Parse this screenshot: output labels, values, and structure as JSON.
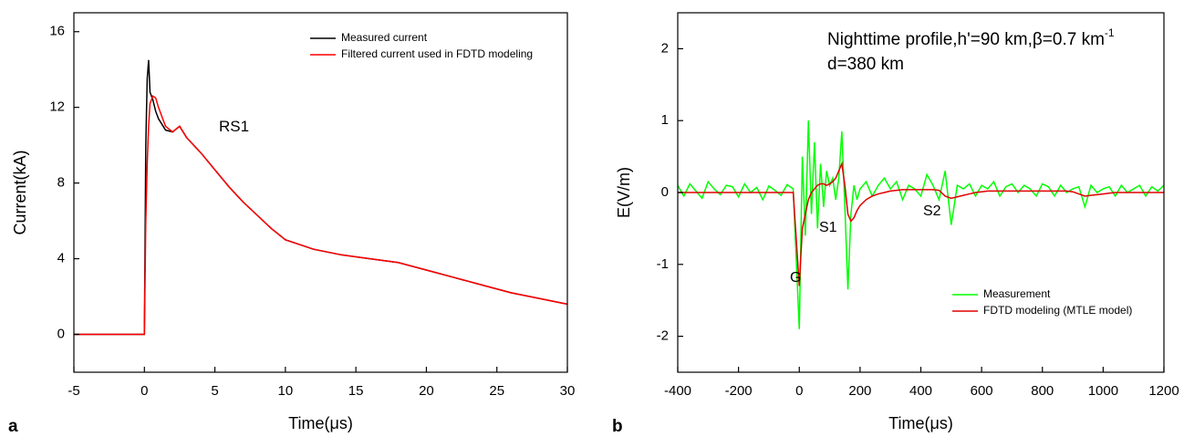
{
  "chart_data": [
    {
      "type": "line",
      "panel_label": "a",
      "xlabel": "Time(μs)",
      "ylabel": "Current(kA)",
      "xlim": [
        -5,
        30
      ],
      "ylim": [
        -2,
        17
      ],
      "xticks": [
        -5,
        0,
        5,
        10,
        15,
        20,
        25,
        30
      ],
      "yticks": [
        0,
        4,
        8,
        12,
        16
      ],
      "legend": "upper right",
      "x": [
        -5,
        0,
        0.05,
        0.1,
        0.2,
        0.3,
        0.4,
        0.6,
        0.8,
        1,
        1.5,
        2,
        2.5,
        3,
        4,
        5,
        6,
        7,
        8,
        9,
        10,
        12,
        14,
        16,
        18,
        20,
        22,
        24,
        26,
        28,
        30
      ],
      "series": [
        {
          "name": "Measured current",
          "color": "#000000",
          "values": [
            0,
            0,
            5,
            10,
            13.5,
            14.5,
            12.8,
            12.4,
            11.8,
            11.4,
            10.8,
            10.7,
            11,
            10.4,
            9.6,
            8.7,
            7.8,
            7,
            6.3,
            5.6,
            5,
            4.5,
            4.2,
            4,
            3.8,
            3.4,
            3,
            2.6,
            2.2,
            1.9,
            1.6
          ]
        },
        {
          "name": "Filtered current used in FDTD modeling",
          "color": "#ff0000",
          "values": [
            0,
            0,
            3,
            6,
            9,
            11,
            12.2,
            12.6,
            12.5,
            12,
            11,
            10.7,
            11,
            10.4,
            9.6,
            8.7,
            7.8,
            7,
            6.3,
            5.6,
            5,
            4.5,
            4.2,
            4,
            3.8,
            3.4,
            3,
            2.6,
            2.2,
            1.9,
            1.6
          ]
        }
      ],
      "annotations": [
        {
          "text": "RS1"
        }
      ]
    },
    {
      "type": "line",
      "panel_label": "b",
      "xlabel": "Time(μs)",
      "ylabel": "E(V/m)",
      "xlim": [
        -400,
        1200
      ],
      "ylim": [
        -2.5,
        2.5
      ],
      "xticks": [
        -400,
        -200,
        0,
        200,
        400,
        600,
        800,
        1000,
        1200
      ],
      "yticks": [
        -2,
        -1,
        0,
        1,
        2
      ],
      "legend": "lower right",
      "x": [
        -400,
        -380,
        -360,
        -340,
        -320,
        -300,
        -280,
        -260,
        -240,
        -220,
        -200,
        -180,
        -160,
        -140,
        -120,
        -100,
        -80,
        -60,
        -40,
        -20,
        0,
        10,
        20,
        30,
        40,
        50,
        60,
        70,
        80,
        90,
        100,
        110,
        120,
        130,
        140,
        150,
        160,
        170,
        180,
        190,
        200,
        220,
        240,
        260,
        280,
        300,
        320,
        340,
        360,
        380,
        400,
        420,
        440,
        460,
        480,
        500,
        520,
        540,
        560,
        580,
        600,
        620,
        640,
        660,
        680,
        700,
        720,
        740,
        760,
        780,
        800,
        820,
        840,
        860,
        880,
        900,
        920,
        940,
        960,
        980,
        1000,
        1020,
        1040,
        1060,
        1080,
        1100,
        1120,
        1140,
        1160,
        1180,
        1200
      ],
      "series": [
        {
          "name": "Measurement",
          "color": "#00ff00",
          "values": [
            0.1,
            -0.05,
            0.12,
            0.02,
            -0.08,
            0.15,
            0.05,
            -0.03,
            0.1,
            0.08,
            -0.06,
            0.12,
            0,
            0.07,
            -0.1,
            0.09,
            0.03,
            -0.04,
            0.11,
            0.05,
            -1.9,
            0.5,
            -0.6,
            1.0,
            -0.3,
            0.7,
            -0.5,
            0.4,
            -0.2,
            0.3,
            0.1,
            0.2,
            -0.1,
            0.2,
            0.85,
            -0.2,
            -1.35,
            -0.3,
            0.1,
            -0.1,
            0.05,
            0.15,
            -0.05,
            0.1,
            0.2,
            0.05,
            0.15,
            -0.1,
            0.1,
            0.05,
            -0.05,
            0.25,
            0.1,
            -0.1,
            0.3,
            -0.45,
            0.1,
            0.05,
            0.12,
            -0.05,
            0.1,
            0.05,
            0.15,
            -0.05,
            0.08,
            0.12,
            0,
            0.1,
            0.05,
            -0.05,
            0.12,
            0.08,
            -0.05,
            0.1,
            0,
            0.05,
            0.08,
            -0.2,
            0.1,
            0,
            0.05,
            0.08,
            -0.05,
            0.1,
            0,
            0.05,
            0.1,
            -0.05,
            0.08,
            0.02,
            0.1
          ]
        },
        {
          "name": "FDTD modeling (MTLE model)",
          "color": "#e00000",
          "values": [
            0,
            0,
            0,
            0,
            0,
            0,
            0,
            0,
            0,
            0,
            0,
            0,
            0,
            0,
            0,
            0,
            0,
            0,
            0,
            0,
            -1.3,
            -0.5,
            -0.3,
            -0.1,
            0,
            0.05,
            0.1,
            0.12,
            0.12,
            0.1,
            0.12,
            0.15,
            0.2,
            0.3,
            0.4,
            0.1,
            -0.3,
            -0.4,
            -0.35,
            -0.25,
            -0.18,
            -0.1,
            -0.05,
            -0.02,
            0,
            0.02,
            0.03,
            0.04,
            0.04,
            0.04,
            0.04,
            0.04,
            0.04,
            0.03,
            -0.05,
            -0.08,
            -0.06,
            -0.04,
            -0.02,
            0,
            0.01,
            0.02,
            0.02,
            0.02,
            0.02,
            0.02,
            0.02,
            0.02,
            0.02,
            0.02,
            0.02,
            0.02,
            0.02,
            0.02,
            0.02,
            0.01,
            -0.02,
            -0.05,
            -0.04,
            -0.03,
            -0.02,
            -0.01,
            0,
            0,
            0,
            0,
            0,
            0,
            0,
            0,
            0
          ]
        }
      ],
      "annotations": [
        {
          "text": "Nighttime profile,h'=90 km,β=0.7 km",
          "superscript": "-1"
        },
        {
          "text": "d=380 km"
        },
        {
          "text": "G"
        },
        {
          "text": "S1"
        },
        {
          "text": "S2"
        }
      ]
    }
  ]
}
